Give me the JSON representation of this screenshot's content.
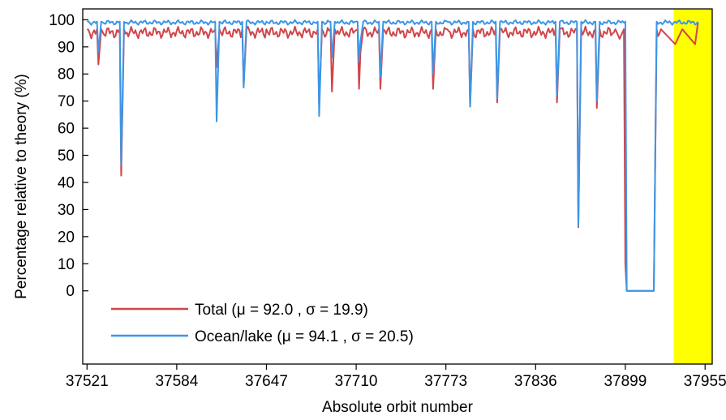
{
  "chart_data": {
    "type": "line",
    "xlabel": "Absolute orbit number",
    "ylabel": "Percentage relative to theory (%)",
    "xlim": [
      37518,
      37960
    ],
    "ylim": [
      -27,
      104
    ],
    "x_ticks": [
      37521,
      37584,
      37647,
      37710,
      37773,
      37836,
      37899,
      37955
    ],
    "x_tick_labels": [
      "37521",
      "37584",
      "37647",
      "37710",
      "37773",
      "37836",
      "37899",
      "37955"
    ],
    "y_ticks": [
      0,
      10,
      20,
      30,
      40,
      50,
      60,
      70,
      80,
      90,
      100
    ],
    "y_tick_labels": [
      "0",
      "10",
      "20",
      "30",
      "40",
      "50",
      "60",
      "70",
      "80",
      "90",
      "100"
    ],
    "highlight": {
      "x_range": [
        37933,
        37960
      ],
      "color": "#ffff00"
    },
    "legend": {
      "placement": "lower-left"
    },
    "colors": {
      "total": "#d0464a",
      "ocean": "#3c96e6"
    },
    "series": [
      {
        "name": "Total (μ = 92.0 , σ = 19.9)",
        "key": "total",
        "baseline": 96.5,
        "x": [
          37521,
          37528,
          37529,
          37531,
          37544,
          37545,
          37547,
          37611,
          37612,
          37614,
          37630,
          37631,
          37633,
          37647,
          37683,
          37684,
          37686,
          37692,
          37693,
          37695,
          37711,
          37712,
          37713,
          37715,
          37726,
          37727,
          37729,
          37763,
          37764,
          37766,
          37774,
          37789,
          37790,
          37792,
          37808,
          37809,
          37811,
          37850,
          37851,
          37853,
          37865,
          37866,
          37868,
          37878,
          37879,
          37881,
          37892,
          37895,
          37898,
          37899,
          37900,
          37919,
          37921,
          37924,
          37934,
          37939,
          37948,
          37950
        ],
        "y": [
          96.5,
          96.5,
          83.5,
          96.5,
          96.5,
          42.5,
          96.5,
          96.5,
          82.5,
          96.5,
          96.5,
          76,
          96.5,
          96.5,
          96.5,
          69,
          96.5,
          96.5,
          73.5,
          96.5,
          96.5,
          74.5,
          88,
          96.5,
          96.5,
          74.5,
          96.5,
          96.5,
          74.5,
          96.5,
          96.5,
          96.5,
          68,
          96.5,
          96.5,
          69.5,
          96.5,
          96.5,
          69.5,
          96.5,
          96.5,
          23.5,
          96.5,
          96.5,
          67.5,
          96.5,
          96.5,
          93,
          96.5,
          10,
          0,
          0,
          96.5,
          96.5,
          91,
          96.5,
          91,
          99
        ]
      },
      {
        "name": "Ocean/lake (μ = 94.1 , σ = 20.5)",
        "key": "ocean",
        "baseline": 99.3,
        "x": [
          37521,
          37528,
          37529,
          37531,
          37544,
          37545,
          37547,
          37611,
          37612,
          37614,
          37630,
          37631,
          37633,
          37647,
          37683,
          37684,
          37686,
          37692,
          37693,
          37695,
          37711,
          37712,
          37713,
          37715,
          37726,
          37727,
          37729,
          37763,
          37764,
          37766,
          37774,
          37789,
          37790,
          37792,
          37808,
          37809,
          37811,
          37850,
          37851,
          37853,
          37865,
          37866,
          37868,
          37878,
          37879,
          37881,
          37895,
          37899,
          37900,
          37919,
          37921,
          37950
        ],
        "y": [
          99.3,
          99.3,
          88,
          99.3,
          99.3,
          46.5,
          99.3,
          99.3,
          62.5,
          99.3,
          99.3,
          75,
          99.3,
          99.3,
          99.3,
          64.5,
          99.3,
          99.3,
          86,
          99.3,
          99.3,
          84.5,
          92,
          99.3,
          99.3,
          79,
          99.3,
          99.3,
          80,
          99.3,
          99.3,
          99.3,
          68,
          99.3,
          99.3,
          71,
          99.3,
          99.3,
          72,
          99.3,
          99.3,
          24,
          99.3,
          99.3,
          70,
          99.3,
          99.3,
          99.3,
          0,
          0,
          99.3,
          99.3
        ]
      }
    ]
  }
}
